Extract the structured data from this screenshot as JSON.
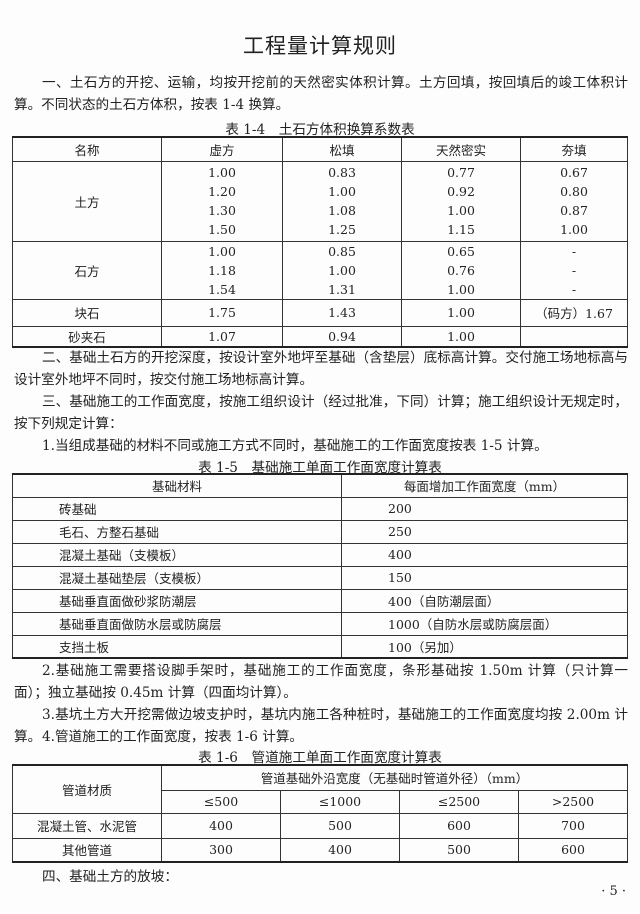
{
  "title": "工程量计算规则",
  "paragraphs": {
    "p1": "一、土石方的开挖、运输，均按开挖前的天然密实体积计算。土方回填，按回填后的竣工体积计算。不同状态的土石方体积，按表 1-4 换算。",
    "p2": "二、基础土石方的开挖深度，按设计室外地坪至基础（含垫层）底标高计算。交付施工场地标高与设计室外地坪不同时，按交付施工场地标高计算。",
    "p3": "三、基础施工的工作面宽度，按施工组织设计（经过批准，下同）计算；施工组织设计无规定时，按下列规定计算：",
    "p4": "1.当组成基础的材料不同或施工方式不同时，基础施工的工作面宽度按表 1-5 计算。",
    "p5": "2.基础施工需要搭设脚手架时，基础施工的工作面宽度，条形基础按 1.50m 计算（只计算一面）；独立基础按 0.45m 计算（四面均计算）。",
    "p6": "3.基坑土方大开挖需做边坡支护时，基坑内施工各种桩时，基础施工的工作面宽度均按 2.00m 计算。",
    "p7": "4.管道施工的工作面宽度，按表 1-6 计算。",
    "p8": "四、基础土方的放坡："
  },
  "table14": {
    "caption": "表 1-4　土石方体积换算系数表",
    "headers": [
      "名称",
      "虚方",
      "松填",
      "天然密实",
      "夯填"
    ],
    "groups": [
      {
        "name": "土方",
        "rows": [
          [
            "1.00",
            "0.83",
            "0.77",
            "0.67"
          ],
          [
            "1.20",
            "1.00",
            "0.92",
            "0.80"
          ],
          [
            "1.30",
            "1.08",
            "1.00",
            "0.87"
          ],
          [
            "1.50",
            "1.25",
            "1.15",
            "1.00"
          ]
        ]
      },
      {
        "name": "石方",
        "rows": [
          [
            "1.00",
            "0.85",
            "0.65",
            "-"
          ],
          [
            "1.18",
            "1.00",
            "0.76",
            "-"
          ],
          [
            "1.54",
            "1.31",
            "1.00",
            "-"
          ]
        ]
      },
      {
        "name": "块石",
        "rows": [
          [
            "1.75",
            "1.43",
            "1.00",
            "（码方）1.67"
          ]
        ]
      },
      {
        "name": "砂夹石",
        "rows": [
          [
            "1.07",
            "0.94",
            "1.00",
            ""
          ]
        ]
      }
    ]
  },
  "table15": {
    "caption": "表 1-5　基础施工单面工作面宽度计算表",
    "headers": [
      "基础材料",
      "每面增加工作面宽度（mm）"
    ],
    "rows": [
      [
        "砖基础",
        "200"
      ],
      [
        "毛石、方整石基础",
        "250"
      ],
      [
        "混凝土基础（支模板）",
        "400"
      ],
      [
        "混凝土基础垫层（支模板）",
        "150"
      ],
      [
        "基础垂直面做砂浆防潮层",
        "400（自防潮层面）"
      ],
      [
        "基础垂直面做防水层或防腐层",
        "1000（自防水层或防腐层面）"
      ],
      [
        "支挡土板",
        "100（另加）"
      ]
    ]
  },
  "table16": {
    "caption": "表 1-6　管道施工单面工作面宽度计算表",
    "header_main": "管道材质",
    "header_span": "管道基础外沿宽度（无基础时管道外径）（mm）",
    "subheaders": [
      "≤500",
      "≤1000",
      "≤2500",
      ">2500"
    ],
    "rows": [
      [
        "混凝土管、水泥管",
        "400",
        "500",
        "600",
        "700"
      ],
      [
        "其他管道",
        "300",
        "400",
        "500",
        "600"
      ]
    ]
  },
  "page_number": "· 5 ·"
}
